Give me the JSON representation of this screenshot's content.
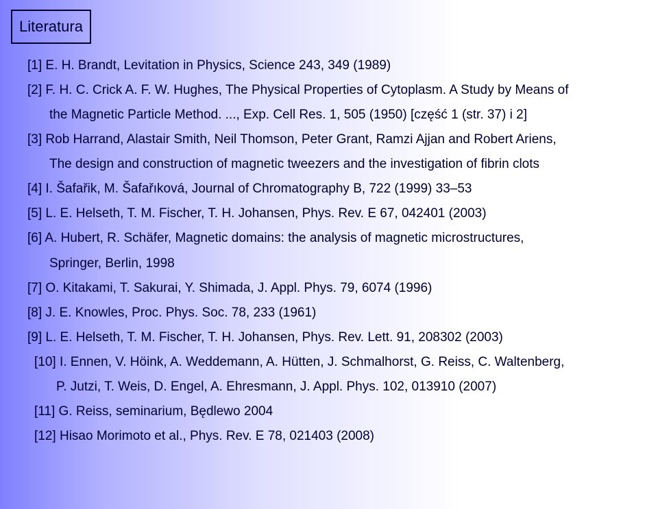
{
  "colors": {
    "text": "#000033",
    "border": "#000033",
    "bg_gradient_start": "#8080ff",
    "bg_gradient_end": "#ffffff"
  },
  "typography": {
    "font_family": "Arial, Helvetica, sans-serif",
    "body_fontsize_pt": 14,
    "title_fontsize_pt": 16,
    "line_height": 1.9
  },
  "title": "Literatura",
  "references": [
    {
      "lines": [
        "[1] E. H. Brandt, Levitation in Physics, Science 243, 349 (1989)"
      ]
    },
    {
      "lines": [
        "[2] F. H. C. Crick A. F. W. Hughes, The Physical Properties of Cytoplasm. A Study by Means of",
        "the Magnetic Particle Method. ..., Exp. Cell Res. 1, 505 (1950) [część 1 (str. 37) i 2]"
      ]
    },
    {
      "lines": [
        "[3] Rob Harrand, Alastair Smith, Neil Thomson, Peter Grant, Ramzi Ajjan and Robert Ariens,",
        "The design and construction of magnetic tweezers and the investigation of fibrin clots"
      ]
    },
    {
      "lines": [
        "[4] I. Šafařik, M. Šafařıková, Journal of Chromatography B, 722 (1999) 33–53"
      ]
    },
    {
      "lines": [
        "[5] L. E. Helseth, T. M. Fischer, T. H. Johansen, Phys. Rev. E 67, 042401 (2003)"
      ]
    },
    {
      "lines": [
        "[6] A. Hubert, R. Schäfer, Magnetic domains: the analysis of magnetic microstructures,",
        "Springer, Berlin, 1998"
      ]
    },
    {
      "lines": [
        "[7] O. Kitakami, T. Sakurai, Y. Shimada, J. Appl. Phys. 79, 6074 (1996)"
      ]
    },
    {
      "lines": [
        "[8] J. E. Knowles, Proc. Phys. Soc. 78, 233 (1961)"
      ]
    },
    {
      "lines": [
        "[9] L. E. Helseth, T. M. Fischer, T. H. Johansen, Phys. Rev. Lett.  91, 208302 (2003)"
      ]
    },
    {
      "lines": [
        "[10] I. Ennen, V. Höink, A. Weddemann, A. Hütten, J. Schmalhorst, G. Reiss, C. Waltenberg,",
        "P. Jutzi, T. Weis, D. Engel, A. Ehresmann, J. Appl. Phys. 102, 013910 (2007)"
      ]
    },
    {
      "lines": [
        "[11] G. Reiss, seminarium, Będlewo 2004"
      ]
    },
    {
      "lines": [
        "[12] Hisao Morimoto et al., Phys. Rev. E 78, 021403 (2008)"
      ]
    }
  ]
}
